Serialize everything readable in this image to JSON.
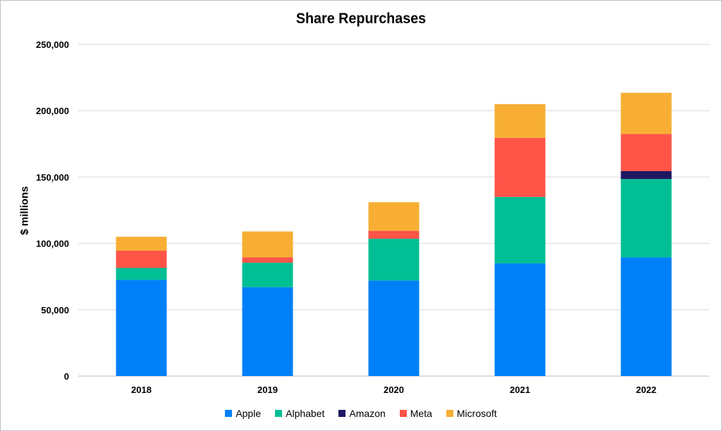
{
  "chart_data": {
    "type": "bar",
    "stacked": true,
    "title": "Share Repurchases",
    "xlabel": "",
    "ylabel": "$ millions",
    "ylim": [
      0,
      250000
    ],
    "yticks": [
      0,
      50000,
      100000,
      150000,
      200000,
      250000
    ],
    "ytick_labels": [
      "0",
      "50,000",
      "100,000",
      "150,000",
      "200,000",
      "250,000"
    ],
    "grid": true,
    "legend_position": "bottom",
    "categories": [
      "2018",
      "2019",
      "2020",
      "2021",
      "2022"
    ],
    "series": [
      {
        "name": "Apple",
        "color": "#0080F8",
        "values": [
          72500,
          67000,
          72000,
          85000,
          89500
        ]
      },
      {
        "name": "Alphabet",
        "color": "#00BF94",
        "values": [
          9000,
          18500,
          31500,
          50000,
          59000
        ]
      },
      {
        "name": "Amazon",
        "color": "#1E1762",
        "values": [
          0,
          0,
          0,
          0,
          6000
        ]
      },
      {
        "name": "Meta",
        "color": "#FF5448",
        "values": [
          13000,
          4000,
          6000,
          44500,
          28000
        ]
      },
      {
        "name": "Microsoft",
        "color": "#F7AE33",
        "values": [
          10500,
          19500,
          21500,
          25500,
          31000
        ]
      }
    ]
  }
}
